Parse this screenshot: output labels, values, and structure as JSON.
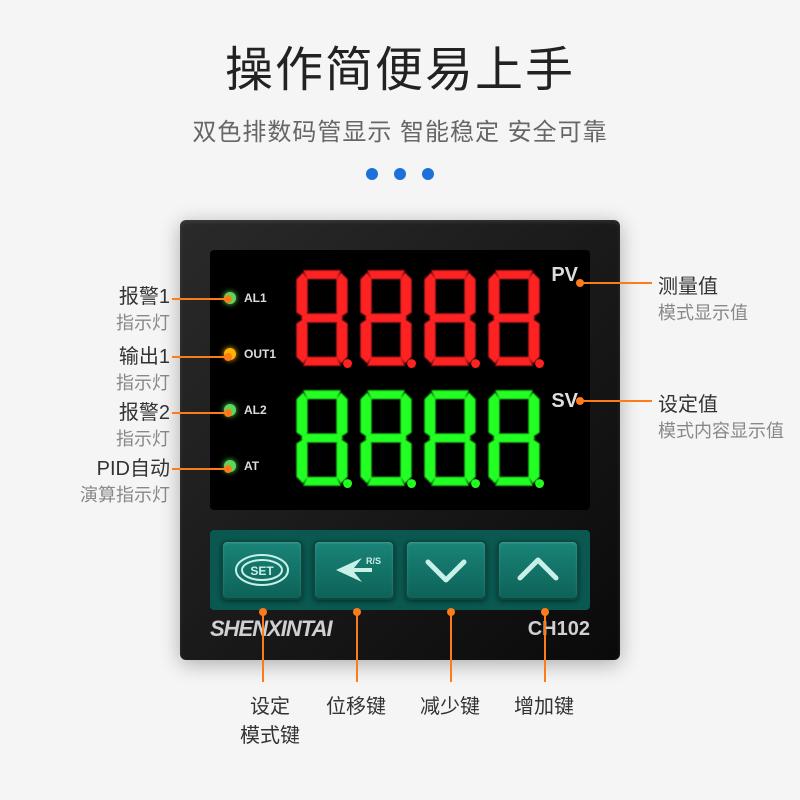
{
  "header": {
    "title": "操作简便易上手",
    "subtitle": "双色排数码管显示 智能稳定 安全可靠",
    "dot_colors": [
      "#1e6fd9",
      "#1e6fd9",
      "#1e6fd9"
    ]
  },
  "device": {
    "pv_label": "PV",
    "sv_label": "SV",
    "digits_pv": "8.8.8.8.",
    "digits_sv": "8.8.8.8.",
    "pv_color": "#ff2020",
    "sv_color": "#20ff20",
    "leds": [
      {
        "label": "AL1",
        "color": "#5bd85b"
      },
      {
        "label": "OUT1",
        "color": "#ffb400"
      },
      {
        "label": "AL2",
        "color": "#5bd85b"
      },
      {
        "label": "AT",
        "color": "#5bd85b"
      }
    ],
    "buttons": [
      {
        "name": "set",
        "label": "SET"
      },
      {
        "name": "shift",
        "label": "R/S"
      },
      {
        "name": "down",
        "label": "down"
      },
      {
        "name": "up",
        "label": "up"
      }
    ],
    "brand": "SHENXINTAI",
    "model": "CH102"
  },
  "callouts": {
    "left": [
      {
        "main": "报警1",
        "sub": "指示灯"
      },
      {
        "main": "输出1",
        "sub": "指示灯"
      },
      {
        "main": "报警2",
        "sub": "指示灯"
      },
      {
        "main": "PID自动",
        "sub": "演算指示灯"
      }
    ],
    "right": [
      {
        "main": "测量值",
        "sub": "模式显示值"
      },
      {
        "main": "设定值",
        "sub": "模式内容显示值"
      }
    ],
    "bottom": [
      {
        "main": "设定",
        "sub": "模式键"
      },
      {
        "main": "位移键",
        "sub": ""
      },
      {
        "main": "减少键",
        "sub": ""
      },
      {
        "main": "增加键",
        "sub": ""
      }
    ],
    "line_color": "#fe7a1a"
  }
}
